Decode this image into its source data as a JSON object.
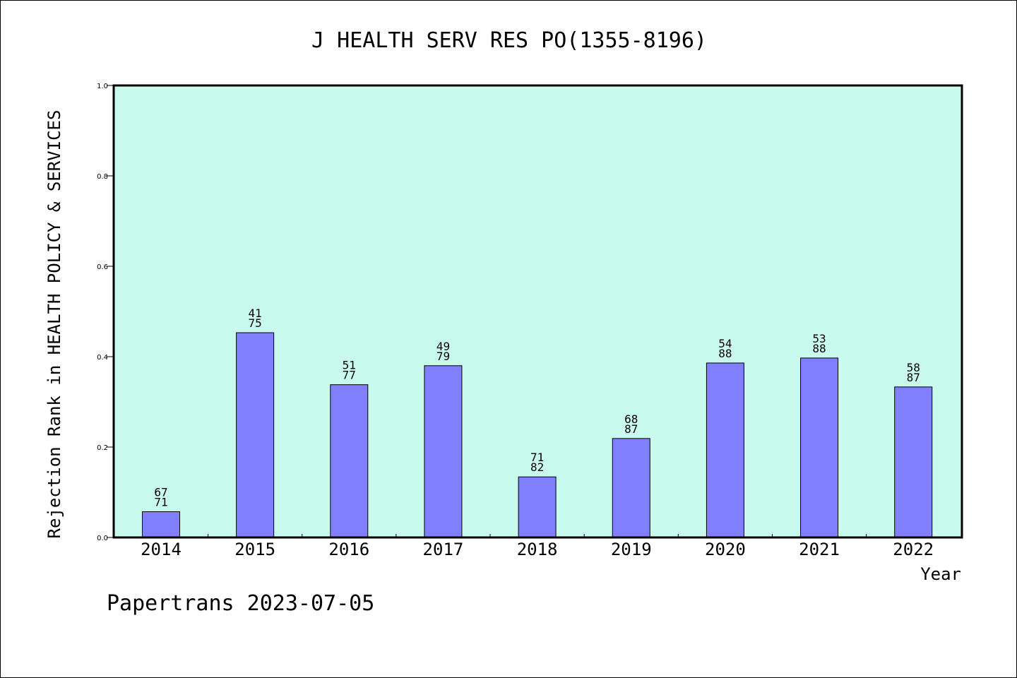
{
  "chart_data": {
    "type": "bar",
    "title": "J HEALTH SERV RES PO(1355-8196)",
    "xlabel": "Year",
    "ylabel": "Rejection Rank in HEALTH POLICY & SERVICES",
    "ylim": [
      0,
      1.0
    ],
    "yticks": [
      "0.0",
      "0.2",
      "0.4",
      "0.6",
      "0.8",
      "1.0"
    ],
    "categories": [
      "2014",
      "2015",
      "2016",
      "2017",
      "2018",
      "2019",
      "2020",
      "2021",
      "2022"
    ],
    "values": [
      0.057,
      0.453,
      0.338,
      0.38,
      0.134,
      0.219,
      0.386,
      0.397,
      0.333
    ],
    "labels": [
      [
        "67",
        "71"
      ],
      [
        "41",
        "75"
      ],
      [
        "51",
        "77"
      ],
      [
        "49",
        "79"
      ],
      [
        "71",
        "82"
      ],
      [
        "68",
        "87"
      ],
      [
        "54",
        "88"
      ],
      [
        "53",
        "88"
      ],
      [
        "58",
        "87"
      ]
    ],
    "grid": false,
    "colors": {
      "plot_background": "#c8fbee",
      "bar_fill": "#8080ff",
      "bar_stroke": "#000000"
    }
  },
  "footer": "Papertrans 2023-07-05"
}
